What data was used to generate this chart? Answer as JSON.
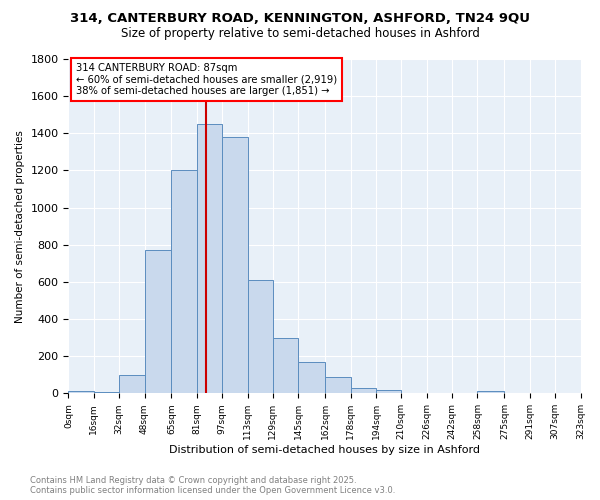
{
  "title_line1": "314, CANTERBURY ROAD, KENNINGTON, ASHFORD, TN24 9QU",
  "title_line2": "Size of property relative to semi-detached houses in Ashford",
  "xlabel": "Distribution of semi-detached houses by size in Ashford",
  "ylabel": "Number of semi-detached properties",
  "footnote_line1": "Contains HM Land Registry data © Crown copyright and database right 2025.",
  "footnote_line2": "Contains public sector information licensed under the Open Government Licence v3.0.",
  "property_size": 87,
  "annotation_title": "314 CANTERBURY ROAD: 87sqm",
  "annotation_line1": "← 60% of semi-detached houses are smaller (2,919)",
  "annotation_line2": "38% of semi-detached houses are larger (1,851) →",
  "vline_x": 87,
  "bar_edges": [
    0,
    16,
    32,
    48,
    65,
    81,
    97,
    113,
    129,
    145,
    162,
    178,
    194,
    210,
    226,
    242,
    258,
    275,
    291,
    307,
    323
  ],
  "bar_heights": [
    15,
    5,
    100,
    770,
    1200,
    1450,
    1380,
    610,
    300,
    170,
    90,
    30,
    20,
    0,
    0,
    0,
    12,
    0,
    0,
    0
  ],
  "tick_labels": [
    "0sqm",
    "16sqm",
    "32sqm",
    "48sqm",
    "65sqm",
    "81sqm",
    "97sqm",
    "113sqm",
    "129sqm",
    "145sqm",
    "162sqm",
    "178sqm",
    "194sqm",
    "210sqm",
    "226sqm",
    "242sqm",
    "258sqm",
    "275sqm",
    "291sqm",
    "307sqm",
    "323sqm"
  ],
  "bar_facecolor": "#c9d9ed",
  "bar_edgecolor": "#5b8dbf",
  "vline_color": "#cc0000",
  "background_color": "#ffffff",
  "grid_color": "#ffffff",
  "axes_bg_color": "#e8f0f8",
  "ylim": [
    0,
    1800
  ],
  "yticks": [
    0,
    200,
    400,
    600,
    800,
    1000,
    1200,
    1400,
    1600,
    1800
  ]
}
